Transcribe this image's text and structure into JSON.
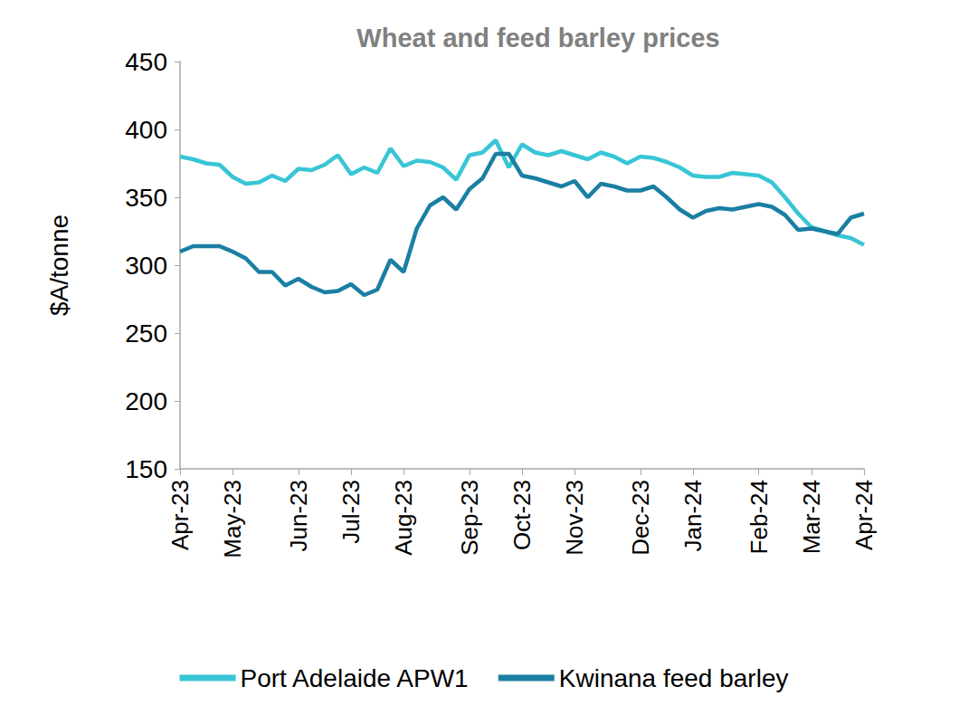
{
  "chart_data": {
    "type": "line",
    "title": "Wheat and feed barley prices",
    "y_label": "$A/tonne",
    "categories": [
      "Apr-23",
      null,
      null,
      null,
      "May-23",
      null,
      null,
      null,
      null,
      "Jun-23",
      null,
      null,
      null,
      "Jul-23",
      null,
      null,
      null,
      "Aug-23",
      null,
      null,
      null,
      null,
      "Sep-23",
      null,
      null,
      null,
      "Oct-23",
      null,
      null,
      null,
      "Nov-23",
      null,
      null,
      null,
      null,
      "Dec-23",
      null,
      null,
      null,
      "Jan-24",
      null,
      null,
      null,
      null,
      "Feb-24",
      null,
      null,
      null,
      "Mar-24",
      null,
      null,
      null,
      "Apr-24"
    ],
    "series": [
      {
        "name": "Port Adelaide APW1",
        "color": "#38c6d6",
        "values": [
          380,
          378,
          375,
          374,
          365,
          360,
          361,
          366,
          362,
          371,
          370,
          374,
          381,
          367,
          372,
          368,
          386,
          373,
          377,
          376,
          372,
          363,
          381,
          383,
          392,
          372,
          389,
          383,
          381,
          384,
          381,
          378,
          383,
          380,
          375,
          380,
          379,
          376,
          372,
          366,
          365,
          365,
          368,
          367,
          366,
          361,
          350,
          338,
          328,
          325,
          322,
          320,
          315
        ]
      },
      {
        "name": "Kwinana feed barley",
        "color": "#1a7fa3",
        "values": [
          310,
          314,
          314,
          314,
          310,
          305,
          295,
          295,
          285,
          290,
          284,
          280,
          281,
          286,
          278,
          282,
          304,
          295,
          327,
          344,
          350,
          341,
          356,
          364,
          382,
          382,
          366,
          364,
          361,
          358,
          362,
          350,
          360,
          358,
          355,
          355,
          358,
          350,
          341,
          335,
          340,
          342,
          341,
          343,
          345,
          343,
          337,
          326,
          327,
          325,
          323,
          335,
          338
        ]
      }
    ],
    "ylim": [
      150,
      450
    ],
    "yticks": [
      150,
      200,
      250,
      300,
      350,
      400,
      450
    ],
    "grid": false,
    "legend": "bottom"
  }
}
